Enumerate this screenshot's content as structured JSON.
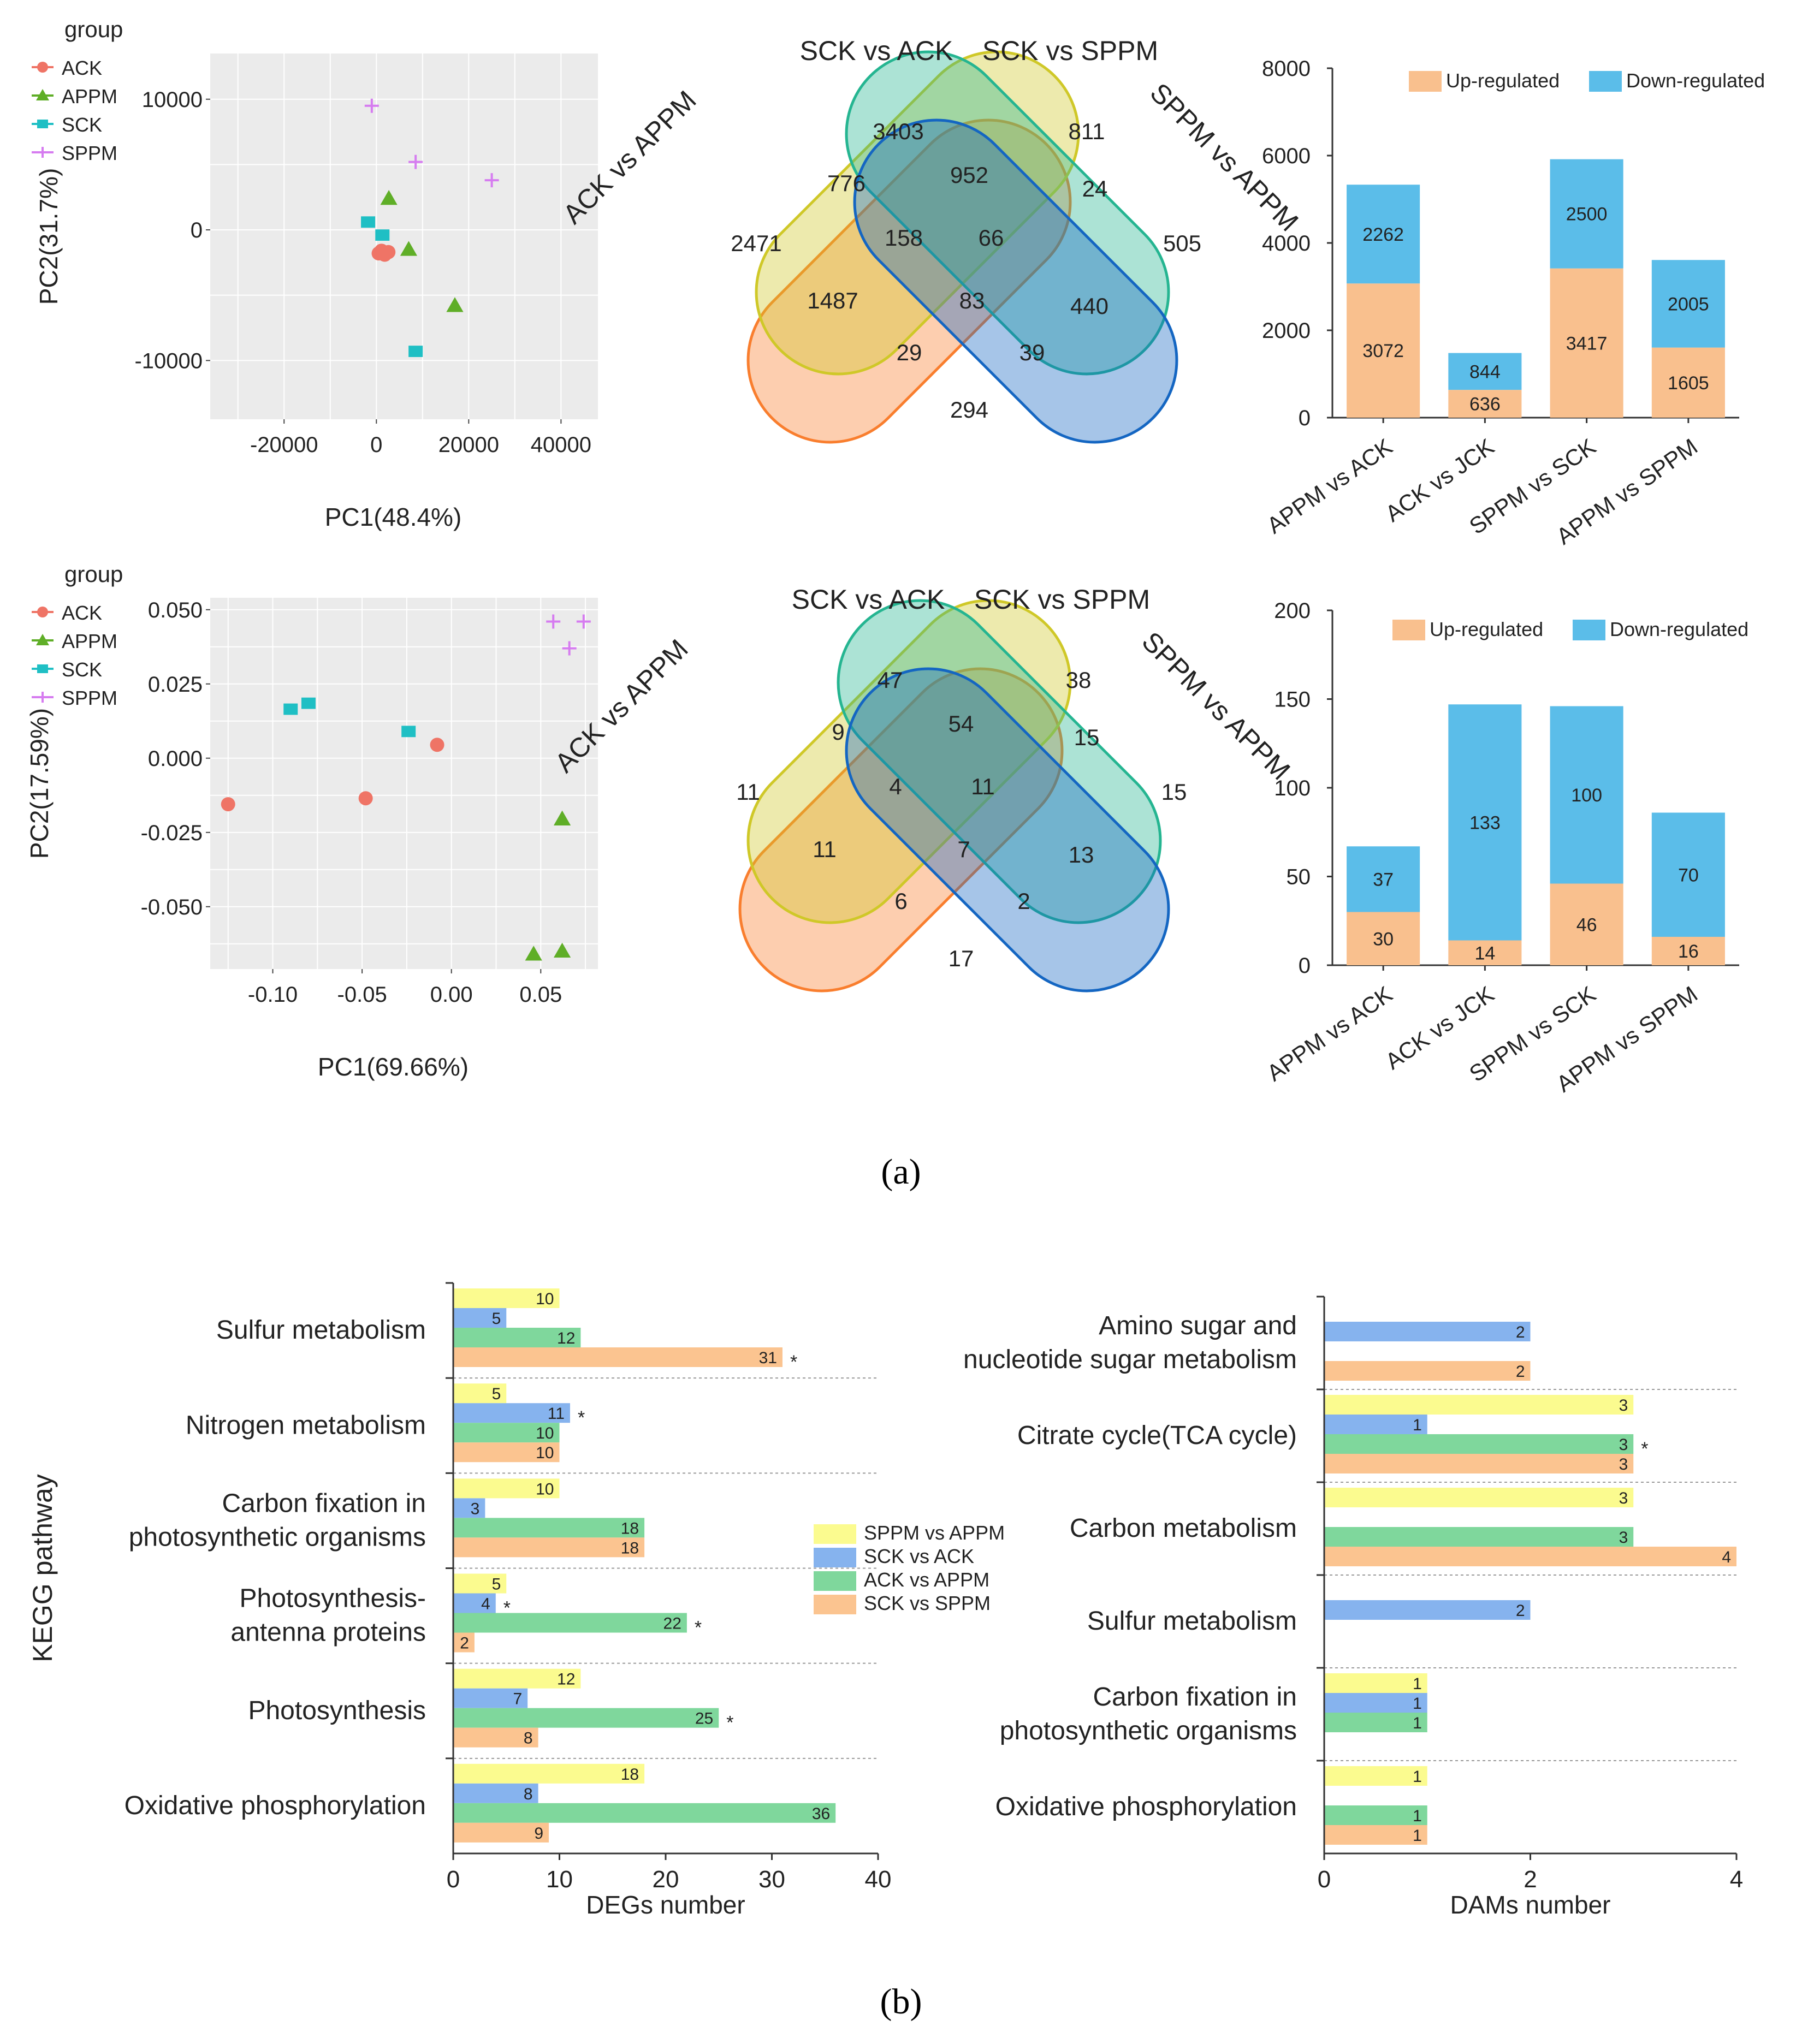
{
  "figure_labels": {
    "a": "(a)",
    "b": "(b)"
  },
  "colors": {
    "ACK": "#ef7466",
    "APPM": "#5fae27",
    "SCK": "#1fbfc4",
    "SPPM": "#d67cf0",
    "up": "#f9c08e",
    "down": "#5bbde9",
    "kegg_sppm_appm": "#fbfb8f",
    "kegg_sck_ack": "#86b3ee",
    "kegg_ack_appm": "#7fd79c",
    "kegg_sck_sppm": "#fbc490",
    "venn_ack_appm": "#f97e2e",
    "venn_sck_ack": "#cfc828",
    "venn_sck_sppm": "#25b591",
    "venn_sppm_appm": "#1466c2"
  },
  "chart_data": [
    {
      "id": "pca1",
      "type": "scatter",
      "xlabel": "PC1(48.4%)",
      "ylabel": "PC2(31.7%)",
      "legend_title": "group",
      "legend": [
        "ACK",
        "APPM",
        "SCK",
        "SPPM"
      ],
      "xlim": [
        -36000,
        48000
      ],
      "ylim": [
        -14500,
        13500
      ],
      "xticks": [
        -20000,
        0,
        20000,
        40000
      ],
      "xtick_labels": [
        "-20000",
        "0",
        "20000",
        "40000"
      ],
      "yticks": [
        10000,
        0,
        -10000
      ],
      "ytick_labels": [
        "10000",
        "0",
        "-10000"
      ],
      "series": [
        {
          "name": "ACK",
          "shape": "circle",
          "points": [
            [
              500,
              -1800
            ],
            [
              1800,
              -1900
            ],
            [
              1100,
              -1600
            ],
            [
              2600,
              -1700
            ]
          ]
        },
        {
          "name": "APPM",
          "shape": "triangle",
          "points": [
            [
              2700,
              2400
            ],
            [
              7000,
              -1500
            ],
            [
              17000,
              -5800
            ]
          ]
        },
        {
          "name": "SCK",
          "shape": "square",
          "points": [
            [
              -1800,
              600
            ],
            [
              1300,
              -400
            ],
            [
              8500,
              -9300
            ]
          ]
        },
        {
          "name": "SPPM",
          "shape": "plus",
          "points": [
            [
              -1000,
              9500
            ],
            [
              8500,
              5200
            ],
            [
              25000,
              3800
            ]
          ]
        }
      ]
    },
    {
      "id": "venn1",
      "type": "venn",
      "sets": [
        "ACK vs APPM",
        "SCK vs ACK",
        "SCK vs SPPM",
        "SPPM vs APPM"
      ],
      "regions": [
        "2471",
        "3403",
        "811",
        "505",
        "776",
        "952",
        "24",
        "158",
        "66",
        "1487",
        "83",
        "440",
        "29",
        "39",
        "294"
      ]
    },
    {
      "id": "bar1",
      "type": "bar",
      "stacked": true,
      "categories": [
        "APPM vs ACK",
        "ACK vs JCK",
        "SPPM vs SCK",
        "APPM vs SPPM"
      ],
      "series": [
        {
          "name": "Up-regulated",
          "values": [
            3072,
            636,
            3417,
            1605
          ]
        },
        {
          "name": "Down-regulated",
          "values": [
            2262,
            844,
            2500,
            2005
          ]
        }
      ],
      "ylim": [
        0,
        8000
      ],
      "yticks": [
        0,
        2000,
        4000,
        6000,
        8000
      ],
      "ytick_labels": [
        "0",
        "2000",
        "4000",
        "6000",
        "8000"
      ],
      "legend": "top"
    },
    {
      "id": "pca2",
      "type": "scatter",
      "xlabel": "PC1(69.66%)",
      "ylabel": "PC2(17.59%)",
      "legend_title": "group",
      "legend": [
        "ACK",
        "APPM",
        "SCK",
        "SPPM"
      ],
      "xlim": [
        -0.135,
        0.082
      ],
      "ylim": [
        -0.071,
        0.054
      ],
      "xticks": [
        -0.1,
        -0.05,
        0.0,
        0.05
      ],
      "xtick_labels": [
        "-0.10",
        "-0.05",
        "0.00",
        "0.05"
      ],
      "yticks": [
        0.05,
        0.025,
        0.0,
        -0.025,
        -0.05
      ],
      "ytick_labels": [
        "0.050",
        "0.025",
        "0.000",
        "-0.025",
        "-0.050"
      ],
      "series": [
        {
          "name": "ACK",
          "shape": "circle",
          "points": [
            [
              -0.125,
              -0.0155
            ],
            [
              -0.048,
              -0.0135
            ],
            [
              -0.008,
              0.0045
            ]
          ]
        },
        {
          "name": "APPM",
          "shape": "triangle",
          "points": [
            [
              0.062,
              -0.0205
            ],
            [
              0.046,
              -0.066
            ],
            [
              0.062,
              -0.065
            ]
          ]
        },
        {
          "name": "SCK",
          "shape": "square",
          "points": [
            [
              -0.09,
              0.0165
            ],
            [
              -0.08,
              0.0185
            ],
            [
              -0.024,
              0.009
            ]
          ]
        },
        {
          "name": "SPPM",
          "shape": "plus",
          "points": [
            [
              0.057,
              0.046
            ],
            [
              0.074,
              0.046
            ],
            [
              0.066,
              0.037
            ]
          ]
        }
      ]
    },
    {
      "id": "venn2",
      "type": "venn",
      "sets": [
        "ACK vs APPM",
        "SCK vs ACK",
        "SCK vs SPPM",
        "SPPM vs APPM"
      ],
      "regions": [
        "11",
        "47",
        "38",
        "15",
        "9",
        "54",
        "15",
        "4",
        "11",
        "11",
        "7",
        "13",
        "6",
        "2",
        "17"
      ]
    },
    {
      "id": "bar2",
      "type": "bar",
      "stacked": true,
      "categories": [
        "APPM vs ACK",
        "ACK vs JCK",
        "SPPM vs SCK",
        "APPM vs SPPM"
      ],
      "series": [
        {
          "name": "Up-regulated",
          "values": [
            30,
            14,
            46,
            16
          ]
        },
        {
          "name": "Down-regulated",
          "values": [
            37,
            133,
            100,
            70
          ]
        }
      ],
      "ylim": [
        0,
        200
      ],
      "yticks": [
        0,
        50,
        100,
        150,
        200
      ],
      "ytick_labels": [
        "0",
        "50",
        "100",
        "150",
        "200"
      ],
      "legend": "top"
    },
    {
      "id": "kegg_degs",
      "type": "bar",
      "orientation": "horizontal",
      "xlabel": "DEGs number",
      "ylabel": "KEGG pathway",
      "xlim": [
        0,
        40
      ],
      "xticks": [
        0,
        10,
        20,
        30,
        40
      ],
      "xtick_labels": [
        "0",
        "10",
        "20",
        "30",
        "40"
      ],
      "legend": [
        "SPPM vs APPM",
        "SCK vs ACK",
        "ACK vs APPM",
        "SCK vs SPPM"
      ],
      "categories": [
        "Sulfur metabolism",
        "Nitrogen metabolism",
        "Carbon fixation in\nphotosynthetic organisms",
        "Photosynthesis-\nantenna proteins",
        "Photosynthesis",
        "Oxidative phosphorylation"
      ],
      "series": [
        {
          "name": "SPPM vs APPM",
          "values": [
            10,
            5,
            10,
            5,
            12,
            18
          ]
        },
        {
          "name": "SCK vs ACK",
          "values": [
            5,
            11,
            3,
            4,
            7,
            8
          ]
        },
        {
          "name": "ACK vs APPM",
          "values": [
            12,
            10,
            18,
            22,
            25,
            36
          ]
        },
        {
          "name": "SCK vs SPPM",
          "values": [
            31,
            10,
            18,
            2,
            8,
            9
          ]
        }
      ],
      "significant": [
        {
          "pathway": 0,
          "series": 3,
          "mark": "*"
        },
        {
          "pathway": 1,
          "series": 1,
          "mark": "*"
        },
        {
          "pathway": 3,
          "series": 1,
          "mark": "*"
        },
        {
          "pathway": 3,
          "series": 2,
          "mark": "*"
        },
        {
          "pathway": 4,
          "series": 2,
          "mark": "*"
        }
      ]
    },
    {
      "id": "kegg_dams",
      "type": "bar",
      "orientation": "horizontal",
      "xlabel": "DAMs number",
      "xlim": [
        0,
        4
      ],
      "xticks": [
        0,
        2,
        4
      ],
      "xtick_labels": [
        "0",
        "2",
        "4"
      ],
      "categories": [
        "Amino sugar and\nnucleotide sugar metabolism",
        "Citrate cycle(TCA cycle)",
        "Carbon metabolism",
        "Sulfur metabolism",
        "Carbon fixation in\nphotosynthetic organisms",
        "Oxidative phosphorylation"
      ],
      "series": [
        {
          "name": "SPPM vs APPM",
          "values": [
            null,
            3,
            3,
            null,
            1,
            1
          ]
        },
        {
          "name": "SCK vs ACK",
          "values": [
            2,
            1,
            null,
            2,
            1,
            null
          ]
        },
        {
          "name": "ACK vs APPM",
          "values": [
            null,
            3,
            3,
            null,
            1,
            1
          ]
        },
        {
          "name": "SCK vs SPPM",
          "values": [
            2,
            3,
            4,
            null,
            null,
            1
          ]
        }
      ],
      "significant": [
        {
          "pathway": 1,
          "series": 2,
          "mark": "*"
        }
      ]
    }
  ]
}
